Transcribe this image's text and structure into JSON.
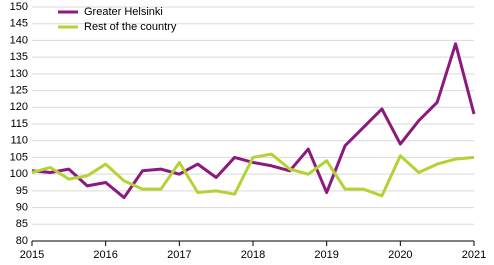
{
  "chart_data": {
    "type": "line",
    "x": [
      2015,
      2015.25,
      2015.5,
      2015.75,
      2016,
      2016.25,
      2016.5,
      2016.75,
      2017,
      2017.25,
      2017.5,
      2017.75,
      2018,
      2018.25,
      2018.5,
      2018.75,
      2019,
      2019.25,
      2019.5,
      2019.75,
      2020,
      2020.25,
      2020.5,
      2020.75,
      2021
    ],
    "series": [
      {
        "name": "Greater Helsinki",
        "color": "#8c1a7d",
        "values": [
          101,
          100.5,
          101.5,
          96.5,
          97.5,
          93,
          101,
          101.5,
          100,
          103,
          99,
          105,
          103.5,
          102.5,
          101,
          107.5,
          94.5,
          108.5,
          114,
          119.5,
          109,
          116,
          121.5,
          139,
          118
        ]
      },
      {
        "name": "Rest of the country",
        "color": "#b3d335",
        "values": [
          100.5,
          102,
          98.5,
          99.5,
          103,
          98,
          95.5,
          95.5,
          103.5,
          94.5,
          95,
          94,
          105,
          106,
          101.5,
          100,
          104,
          95.5,
          95.5,
          93.5,
          105.5,
          100.5,
          103,
          104.5,
          105
        ]
      }
    ],
    "xlim": [
      2015,
      2021
    ],
    "xticks": [
      2015,
      2016,
      2017,
      2018,
      2019,
      2020,
      2021
    ],
    "ylim": [
      80,
      150
    ],
    "yticks": [
      80,
      85,
      90,
      95,
      100,
      105,
      110,
      115,
      120,
      125,
      130,
      135,
      140,
      145,
      150
    ],
    "grid": true,
    "legend": "top-left"
  }
}
